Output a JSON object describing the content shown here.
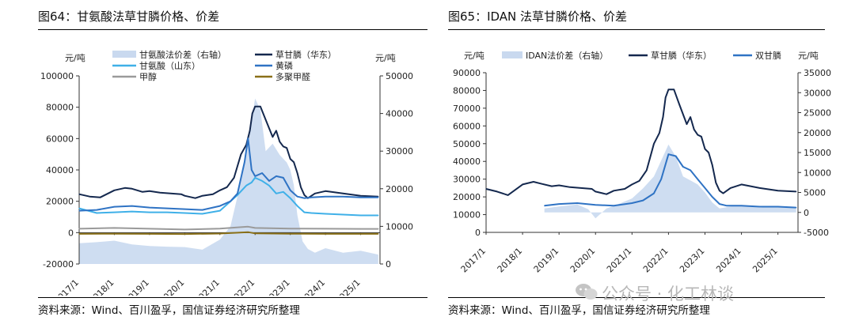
{
  "charts": [
    {
      "title": "图64：甘氨酸法草甘膦价格、价差",
      "source": "资料来源：Wind、百川盈孚，国信证券经济研究所整理",
      "left_unit": "元/吨",
      "right_unit": "元/吨",
      "legend": [
        "甘氨酸法价差（右轴）",
        "草甘膦（华东）",
        "甘氨酸（山东）",
        "黄磷",
        "甲醇",
        "多聚甲醛"
      ]
    },
    {
      "title": "图65：IDAN 法草甘膦价格、价差",
      "source": "资料来源：Wind、百川盈孚，国信证券经济研究所整理",
      "left_unit": "元/吨",
      "right_unit": "元/吨",
      "legend": [
        "IDAN法价差（右轴）",
        "草甘膦（华东）",
        "双甘膦"
      ]
    }
  ],
  "watermark": "公众号 · 化工林谈",
  "chart_data": [
    {
      "type": "line",
      "title": "图64：甘氨酸法草甘膦价格、价差",
      "x_ticks": [
        "2017/1",
        "2018/1",
        "2019/1",
        "2020/1",
        "2021/1",
        "2022/1",
        "2023/1",
        "2024/1",
        "2025/1"
      ],
      "ylim": [
        -20000,
        100000
      ],
      "y_ticks": [
        -20000,
        0,
        20000,
        40000,
        60000,
        80000,
        100000
      ],
      "y2lim": [
        0,
        50000
      ],
      "y2_ticks": [
        0,
        10000,
        20000,
        30000,
        40000,
        50000
      ],
      "legend_position": "top",
      "series": [
        {
          "name": "甘氨酸法价差（右轴）",
          "type": "area",
          "axis": "right",
          "color": "#c9d9ef",
          "x": [
            2017.0,
            2017.5,
            2018.0,
            2018.5,
            2019.0,
            2019.5,
            2020.0,
            2020.5,
            2021.0,
            2021.3,
            2021.5,
            2021.7,
            2021.9,
            2022.0,
            2022.15,
            2022.3,
            2022.5,
            2022.7,
            2022.9,
            2023.0,
            2023.1,
            2023.2,
            2023.35,
            2023.5,
            2023.7,
            2024.0,
            2024.5,
            2025.0,
            2025.5
          ],
          "values": [
            5500,
            5800,
            6200,
            5200,
            4800,
            4600,
            4500,
            3800,
            6500,
            10000,
            18000,
            28000,
            38000,
            44000,
            41000,
            30000,
            32000,
            29000,
            27000,
            25000,
            21000,
            13000,
            6000,
            4000,
            3000,
            4200,
            3000,
            3500,
            2500
          ]
        },
        {
          "name": "草甘膦（华东）",
          "axis": "left",
          "color": "#14284e",
          "x": [
            2017.0,
            2017.3,
            2017.6,
            2018.0,
            2018.3,
            2018.5,
            2018.8,
            2019.0,
            2019.3,
            2019.6,
            2019.9,
            2020.0,
            2020.3,
            2020.5,
            2020.8,
            2021.0,
            2021.2,
            2021.4,
            2021.6,
            2021.75,
            2021.85,
            2021.92,
            2022.0,
            2022.15,
            2022.3,
            2022.5,
            2022.6,
            2022.7,
            2022.8,
            2022.9,
            2023.0,
            2023.1,
            2023.2,
            2023.3,
            2023.4,
            2023.5,
            2023.7,
            2024.0,
            2024.5,
            2025.0,
            2025.5
          ],
          "values": [
            24500,
            23000,
            22500,
            27000,
            28500,
            28000,
            26000,
            26500,
            25500,
            25000,
            24500,
            23500,
            22000,
            23500,
            24500,
            27000,
            29000,
            35000,
            50000,
            56000,
            65000,
            76000,
            80500,
            80500,
            72000,
            61000,
            65000,
            58000,
            55000,
            54000,
            47000,
            45000,
            38000,
            29000,
            24000,
            22000,
            25000,
            26500,
            25000,
            23500,
            23000
          ]
        },
        {
          "name": "甘氨酸（山东）",
          "axis": "left",
          "color": "#3fb0e8",
          "x": [
            2017.0,
            2017.5,
            2018.0,
            2018.5,
            2019.0,
            2019.5,
            2020.0,
            2020.5,
            2021.0,
            2021.3,
            2021.5,
            2021.75,
            2021.9,
            2022.0,
            2022.2,
            2022.4,
            2022.6,
            2022.8,
            2023.0,
            2023.2,
            2023.4,
            2023.6,
            2024.0,
            2024.5,
            2025.0,
            2025.5
          ],
          "values": [
            15500,
            12500,
            13000,
            13500,
            13000,
            13000,
            12500,
            12000,
            14000,
            20000,
            24000,
            30000,
            32000,
            35000,
            33000,
            30000,
            25000,
            26000,
            22000,
            17000,
            13000,
            12500,
            12000,
            11500,
            11000,
            11000
          ]
        },
        {
          "name": "黄磷",
          "axis": "left",
          "color": "#2f73c4",
          "x": [
            2017.0,
            2017.5,
            2018.0,
            2018.5,
            2019.0,
            2019.5,
            2020.0,
            2020.5,
            2021.0,
            2021.3,
            2021.5,
            2021.7,
            2021.8,
            2021.9,
            2022.0,
            2022.2,
            2022.4,
            2022.6,
            2022.8,
            2023.0,
            2023.2,
            2023.4,
            2023.6,
            2024.0,
            2024.5,
            2025.0,
            2025.5
          ],
          "values": [
            14000,
            14500,
            16500,
            17000,
            16000,
            15500,
            15000,
            14500,
            17000,
            20000,
            25000,
            45000,
            60000,
            40000,
            36000,
            38000,
            33000,
            36000,
            35000,
            27000,
            23000,
            22000,
            22500,
            23000,
            23000,
            22500,
            22500
          ]
        },
        {
          "name": "甲醇",
          "axis": "left",
          "color": "#9a9a9a",
          "x": [
            2017.0,
            2018.0,
            2019.0,
            2020.0,
            2021.0,
            2021.8,
            2022.0,
            2023.0,
            2024.0,
            2025.0,
            2025.5
          ],
          "values": [
            2500,
            3000,
            2500,
            2000,
            2600,
            3800,
            3000,
            2600,
            2500,
            2400,
            2400
          ]
        },
        {
          "name": "多聚甲醛",
          "axis": "left",
          "color": "#8a7018",
          "x": [
            2017.0,
            2018.0,
            2019.0,
            2020.0,
            2021.0,
            2021.8,
            2022.0,
            2023.0,
            2024.0,
            2025.0,
            2025.5
          ],
          "values": [
            -800,
            -700,
            -800,
            -900,
            -600,
            300,
            -500,
            -700,
            -800,
            -800,
            -800
          ]
        }
      ]
    },
    {
      "type": "line",
      "title": "图65：IDAN 法草甘膦价格、价差",
      "x_ticks": [
        "2017/1",
        "2018/1",
        "2019/1",
        "2020/1",
        "2021/1",
        "2022/1",
        "2023/1",
        "2024/1",
        "2025/1"
      ],
      "ylim": [
        0,
        90000
      ],
      "y_ticks": [
        0,
        10000,
        20000,
        30000,
        40000,
        50000,
        60000,
        70000,
        80000,
        90000
      ],
      "y2lim": [
        -5000,
        35000
      ],
      "y2_ticks": [
        -5000,
        0,
        5000,
        10000,
        15000,
        20000,
        25000,
        30000,
        35000
      ],
      "legend_position": "top",
      "series": [
        {
          "name": "IDAN法价差（右轴）",
          "type": "area",
          "axis": "right",
          "color": "#c9d9ef",
          "x": [
            2018.6,
            2019.0,
            2019.5,
            2019.8,
            2020.0,
            2020.3,
            2020.6,
            2021.0,
            2021.3,
            2021.6,
            2021.8,
            2022.0,
            2022.2,
            2022.4,
            2022.6,
            2022.8,
            2023.0,
            2023.2,
            2023.4,
            2023.7,
            2024.0,
            2024.5,
            2025.0,
            2025.5
          ],
          "values": [
            1000,
            1500,
            2000,
            800,
            -1500,
            1000,
            2000,
            3500,
            6000,
            9000,
            13000,
            17000,
            14000,
            9000,
            8000,
            7000,
            5000,
            2500,
            1000,
            1500,
            1800,
            1200,
            1500,
            1000
          ]
        },
        {
          "name": "草甘膦（华东）",
          "axis": "left",
          "color": "#14284e",
          "x": [
            2017.0,
            2017.3,
            2017.6,
            2018.0,
            2018.3,
            2018.5,
            2018.8,
            2019.0,
            2019.3,
            2019.6,
            2019.9,
            2020.0,
            2020.3,
            2020.5,
            2020.8,
            2021.0,
            2021.2,
            2021.4,
            2021.6,
            2021.75,
            2021.85,
            2021.92,
            2022.0,
            2022.15,
            2022.3,
            2022.5,
            2022.6,
            2022.7,
            2022.8,
            2022.9,
            2023.0,
            2023.1,
            2023.2,
            2023.3,
            2023.4,
            2023.5,
            2023.7,
            2024.0,
            2024.5,
            2025.0,
            2025.5
          ],
          "values": [
            24500,
            23000,
            21000,
            27000,
            28500,
            27500,
            26000,
            26500,
            25500,
            25000,
            24500,
            23000,
            21500,
            23500,
            24500,
            27000,
            29000,
            35000,
            50000,
            56000,
            65000,
            76000,
            80500,
            80500,
            72000,
            61000,
            65000,
            58000,
            55000,
            54000,
            47000,
            45000,
            38000,
            28000,
            23500,
            22000,
            25000,
            27000,
            25000,
            23500,
            23000
          ]
        },
        {
          "name": "双甘膦",
          "axis": "left",
          "color": "#2f73c4",
          "x": [
            2018.6,
            2019.0,
            2019.5,
            2020.0,
            2020.5,
            2021.0,
            2021.3,
            2021.6,
            2021.8,
            2022.0,
            2022.2,
            2022.4,
            2022.6,
            2022.8,
            2023.0,
            2023.2,
            2023.4,
            2023.6,
            2024.0,
            2024.5,
            2025.0,
            2025.5
          ],
          "values": [
            15000,
            16000,
            16500,
            15500,
            15000,
            16500,
            18000,
            22000,
            30000,
            44000,
            43000,
            37000,
            35000,
            30000,
            25000,
            20000,
            16000,
            15000,
            15000,
            14500,
            14500,
            14000
          ]
        }
      ]
    }
  ]
}
